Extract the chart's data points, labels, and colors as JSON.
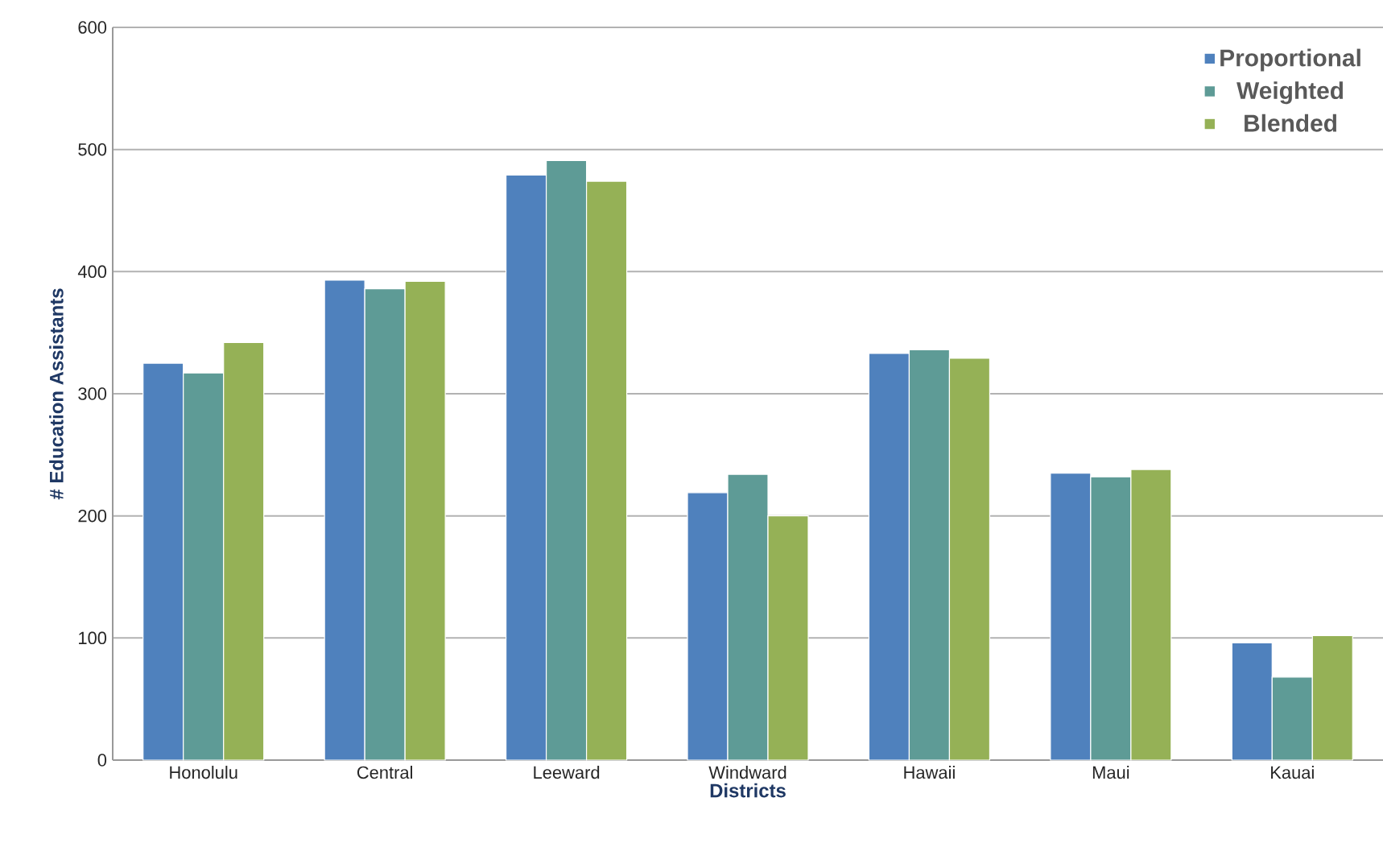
{
  "chart_data": {
    "type": "bar",
    "xlabel": "Districts",
    "ylabel": "# Education Assistants",
    "categories": [
      "Honolulu",
      "Central",
      "Leeward",
      "Windward",
      "Hawaii",
      "Maui",
      "Kauai"
    ],
    "series": [
      {
        "name": "Proportional",
        "color": "#4f81bd",
        "values": [
          325,
          393,
          479,
          219,
          333,
          235,
          96
        ]
      },
      {
        "name": "Weighted",
        "color": "#5e9b96",
        "values": [
          317,
          386,
          491,
          234,
          336,
          232,
          68
        ]
      },
      {
        "name": "Blended",
        "color": "#95b156",
        "values": [
          342,
          392,
          474,
          200,
          329,
          238,
          102
        ]
      }
    ],
    "ylim": [
      0,
      600
    ],
    "yticks": [
      0,
      100,
      200,
      300,
      400,
      500,
      600
    ],
    "grid": "y",
    "legend": "top right"
  }
}
